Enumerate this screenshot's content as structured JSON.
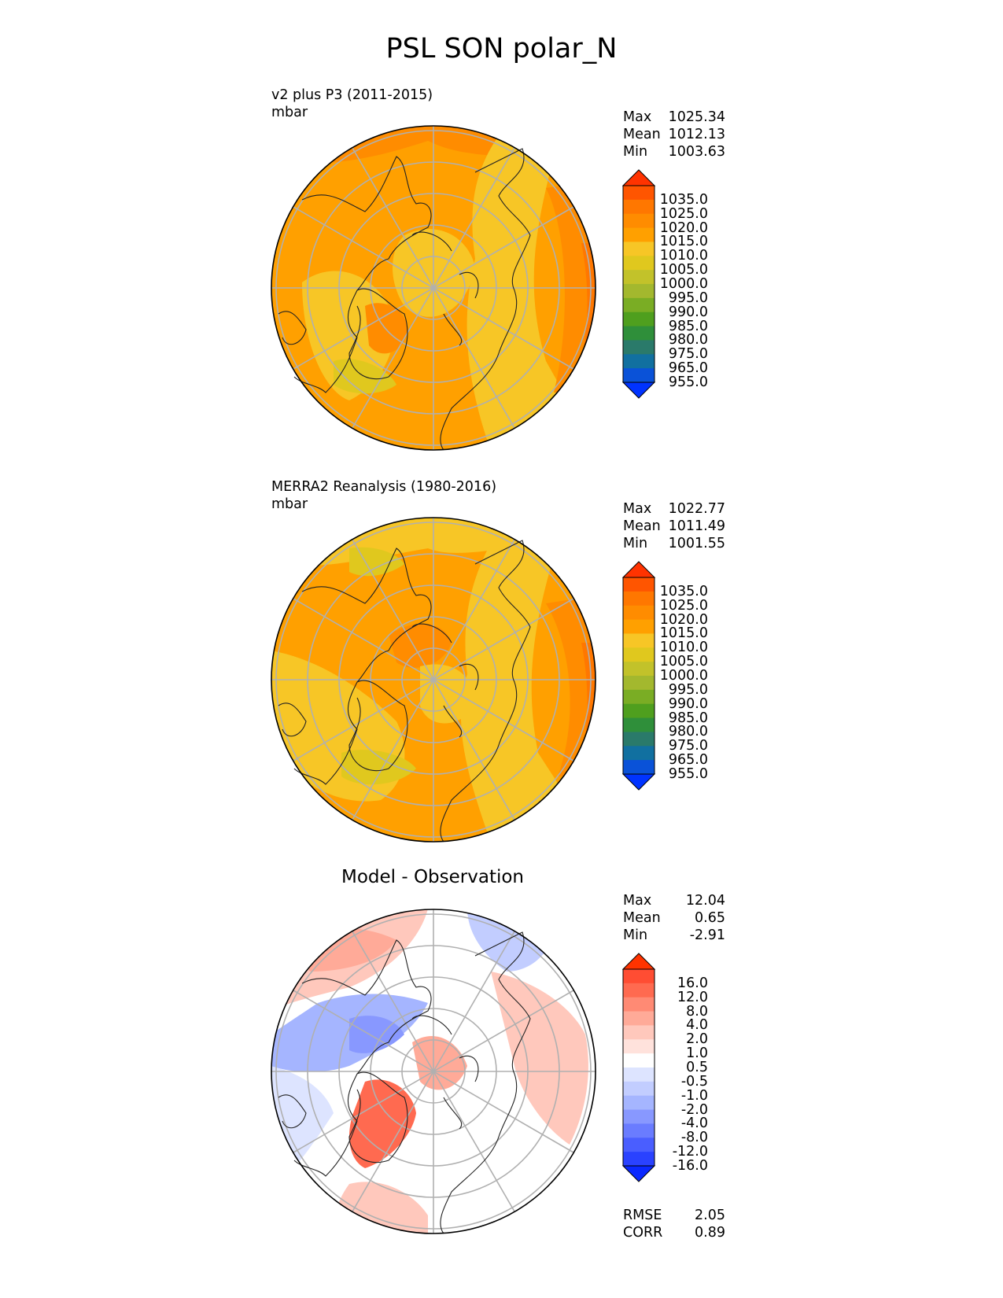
{
  "title": "PSL SON polar_N",
  "panels": [
    {
      "subtitle_line1": "v2 plus P3 (2011-2015)",
      "subtitle_line2": "mbar",
      "center_title": "",
      "stats": [
        {
          "label": "Max",
          "value": "1025.34"
        },
        {
          "label": "Mean",
          "value": "1012.13"
        },
        {
          "label": "Min",
          "value": "1003.63"
        }
      ],
      "colorbar": {
        "labels": [
          "1035.0",
          "1025.0",
          "1020.0",
          "1015.0",
          "1010.0",
          "1005.0",
          "1000.0",
          "995.0",
          "990.0",
          "985.0",
          "980.0",
          "975.0",
          "965.0",
          "955.0"
        ],
        "colors": [
          "#ff3300",
          "#ff5500",
          "#ff7700",
          "#ff8c00",
          "#ffa000",
          "#f7c626",
          "#e0c81e",
          "#c2c22a",
          "#a3b82e",
          "#7aad24",
          "#4f9f1e",
          "#2f8f3a",
          "#2a7a6a",
          "#1170a0",
          "#0a52d8",
          "#0033ff"
        ]
      },
      "map_fill": "#f7c626"
    },
    {
      "subtitle_line1": "MERRA2 Reanalysis (1980-2016)",
      "subtitle_line2": "mbar",
      "center_title": "",
      "stats": [
        {
          "label": "Max",
          "value": "1022.77"
        },
        {
          "label": "Mean",
          "value": "1011.49"
        },
        {
          "label": "Min",
          "value": "1001.55"
        }
      ],
      "colorbar": {
        "labels": [
          "1035.0",
          "1025.0",
          "1020.0",
          "1015.0",
          "1010.0",
          "1005.0",
          "1000.0",
          "995.0",
          "990.0",
          "985.0",
          "980.0",
          "975.0",
          "965.0",
          "955.0"
        ],
        "colors": [
          "#ff3300",
          "#ff5500",
          "#ff7700",
          "#ff8c00",
          "#ffa000",
          "#f7c626",
          "#e0c81e",
          "#c2c22a",
          "#a3b82e",
          "#7aad24",
          "#4f9f1e",
          "#2f8f3a",
          "#2a7a6a",
          "#1170a0",
          "#0a52d8",
          "#0033ff"
        ]
      },
      "map_fill": "#f7c626"
    },
    {
      "subtitle_line1": "",
      "subtitle_line2": "",
      "center_title": "Model - Observation",
      "stats": [
        {
          "label": "Max",
          "value": "12.04"
        },
        {
          "label": "Mean",
          "value": "0.65"
        },
        {
          "label": "Min",
          "value": "-2.91"
        }
      ],
      "colorbar": {
        "labels": [
          "16.0",
          "12.0",
          "8.0",
          "4.0",
          "2.0",
          "1.0",
          "0.5",
          "-0.5",
          "-1.0",
          "-2.0",
          "-4.0",
          "-8.0",
          "-12.0",
          "-16.0"
        ],
        "colors": [
          "#ff3300",
          "#ff4d33",
          "#ff6a50",
          "#ff8a74",
          "#ffaa98",
          "#ffc8bc",
          "#ffe2dc",
          "#ffffff",
          "#dde4ff",
          "#c2cdff",
          "#a5b5ff",
          "#8898ff",
          "#6a7cff",
          "#4a5eff",
          "#2a42ff",
          "#0a28ff"
        ]
      },
      "metrics": [
        {
          "label": "RMSE",
          "value": "2.05"
        },
        {
          "label": "CORR",
          "value": "0.89"
        }
      ],
      "map_fill": "#ffffff"
    }
  ]
}
